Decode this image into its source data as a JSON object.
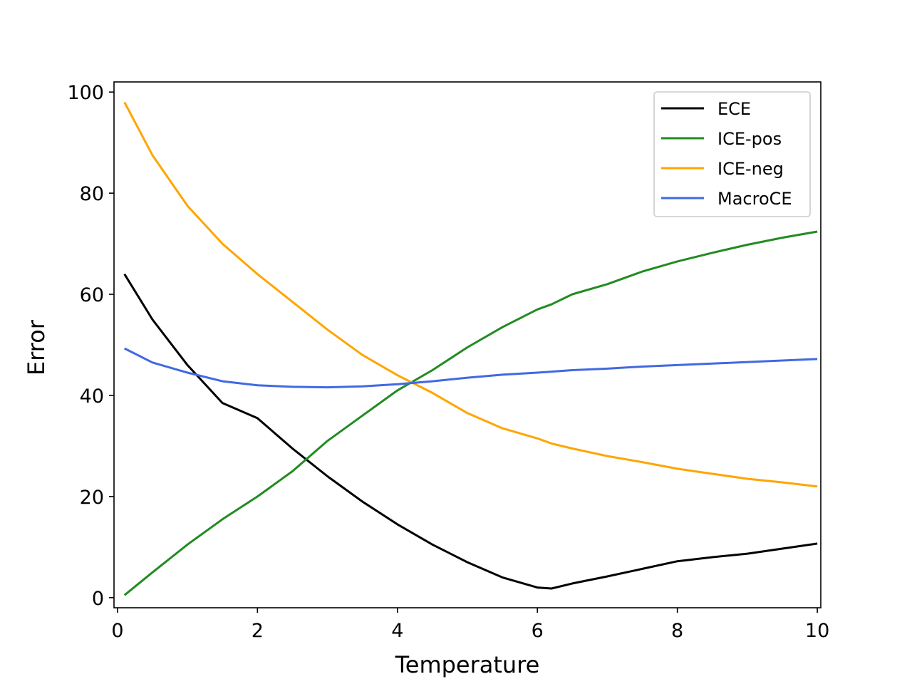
{
  "chart_data": {
    "type": "line",
    "title": "",
    "xlabel": "Temperature",
    "ylabel": "Error",
    "xlim": [
      -0.05,
      10.05
    ],
    "ylim": [
      -2,
      102
    ],
    "xticks": [
      0,
      2,
      4,
      6,
      8,
      10
    ],
    "yticks": [
      0,
      20,
      40,
      60,
      80,
      100
    ],
    "grid": false,
    "legend_position": "top-right",
    "x": [
      0.1,
      0.5,
      1,
      1.5,
      2,
      2.5,
      3,
      3.5,
      4,
      4.5,
      5,
      5.5,
      6,
      6.2,
      6.5,
      7,
      7.5,
      8,
      8.5,
      9,
      9.5,
      10
    ],
    "series": [
      {
        "name": "ECE",
        "color": "#000000",
        "values": [
          64,
          55,
          46,
          38.5,
          35.5,
          29.5,
          24,
          19,
          14.5,
          10.5,
          7,
          4,
          2,
          1.8,
          2.8,
          4.2,
          5.7,
          7.2,
          8,
          8.7,
          9.7,
          10.7
        ]
      },
      {
        "name": "ICE-pos",
        "color": "#228b22",
        "values": [
          0.5,
          5,
          10.5,
          15.5,
          20,
          25,
          31,
          36,
          41,
          45,
          49.5,
          53.5,
          57,
          58,
          60,
          62,
          64.5,
          66.5,
          68.2,
          69.8,
          71.2,
          72.4
        ]
      },
      {
        "name": "ICE-neg",
        "color": "#ffa500",
        "values": [
          98,
          87.5,
          77.5,
          70,
          64,
          58.5,
          53,
          48,
          44,
          40.5,
          36.5,
          33.5,
          31.5,
          30.5,
          29.5,
          28,
          26.8,
          25.5,
          24.5,
          23.5,
          22.8,
          22
        ]
      },
      {
        "name": "MacroCE",
        "color": "#4169e1",
        "values": [
          49.3,
          46.5,
          44.5,
          42.8,
          42,
          41.7,
          41.6,
          41.8,
          42.2,
          42.8,
          43.5,
          44.1,
          44.5,
          44.7,
          45,
          45.3,
          45.7,
          46,
          46.3,
          46.6,
          46.9,
          47.2
        ]
      }
    ]
  }
}
